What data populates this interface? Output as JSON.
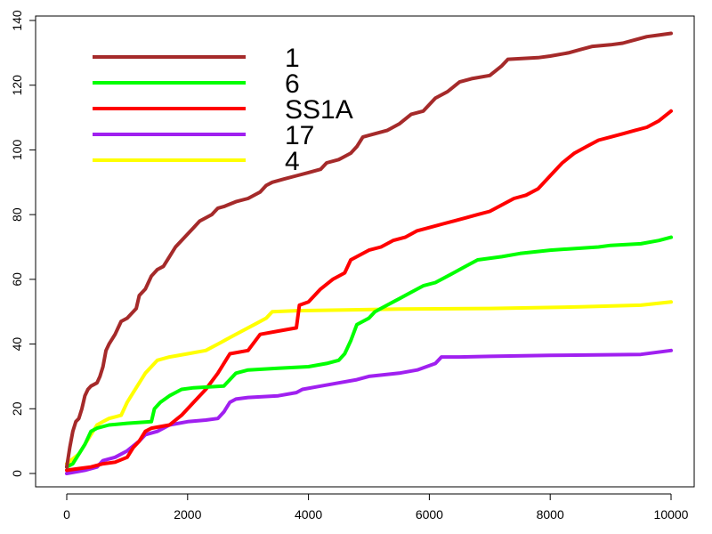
{
  "chart_data": {
    "type": "line",
    "title": "",
    "xlabel": "",
    "ylabel": "",
    "xlim": [
      0,
      10000
    ],
    "ylim": [
      0,
      140
    ],
    "x_ticks": [
      0,
      2000,
      4000,
      6000,
      8000,
      10000
    ],
    "y_ticks": [
      0,
      20,
      40,
      60,
      80,
      100,
      120,
      140
    ],
    "x_tick_labels": [
      "0",
      "2000",
      "4000",
      "6000",
      "8000",
      "10000"
    ],
    "y_tick_labels": [
      "0",
      "20",
      "40",
      "60",
      "80",
      "100",
      "120",
      "140"
    ],
    "grid": false,
    "legend_position": "top-left",
    "series": [
      {
        "name": "1",
        "color": "#a52a2a",
        "points": [
          [
            0,
            2
          ],
          [
            50,
            8
          ],
          [
            100,
            13
          ],
          [
            150,
            16
          ],
          [
            200,
            17
          ],
          [
            250,
            20
          ],
          [
            300,
            24
          ],
          [
            350,
            26
          ],
          [
            400,
            27
          ],
          [
            500,
            28
          ],
          [
            550,
            30
          ],
          [
            600,
            33
          ],
          [
            650,
            38
          ],
          [
            700,
            40
          ],
          [
            800,
            43
          ],
          [
            850,
            45
          ],
          [
            900,
            47
          ],
          [
            1000,
            48
          ],
          [
            1100,
            50
          ],
          [
            1150,
            51
          ],
          [
            1200,
            55
          ],
          [
            1300,
            57
          ],
          [
            1350,
            59
          ],
          [
            1400,
            61
          ],
          [
            1500,
            63
          ],
          [
            1600,
            64
          ],
          [
            1700,
            67
          ],
          [
            1800,
            70
          ],
          [
            1900,
            72
          ],
          [
            2000,
            74
          ],
          [
            2100,
            76
          ],
          [
            2200,
            78
          ],
          [
            2400,
            80
          ],
          [
            2500,
            82
          ],
          [
            2600,
            82.5
          ],
          [
            2800,
            84
          ],
          [
            3000,
            85
          ],
          [
            3200,
            87
          ],
          [
            3300,
            89
          ],
          [
            3400,
            90
          ],
          [
            3600,
            91
          ],
          [
            3800,
            92
          ],
          [
            4000,
            93
          ],
          [
            4200,
            94
          ],
          [
            4300,
            96
          ],
          [
            4500,
            97
          ],
          [
            4700,
            99
          ],
          [
            4800,
            101
          ],
          [
            4900,
            104
          ],
          [
            5000,
            104.5
          ],
          [
            5300,
            106
          ],
          [
            5500,
            108
          ],
          [
            5700,
            111
          ],
          [
            5900,
            112
          ],
          [
            6100,
            116
          ],
          [
            6300,
            118
          ],
          [
            6500,
            121
          ],
          [
            6700,
            122
          ],
          [
            7000,
            123
          ],
          [
            7200,
            126
          ],
          [
            7300,
            128
          ],
          [
            7800,
            128.5
          ],
          [
            8000,
            129
          ],
          [
            8300,
            130
          ],
          [
            8500,
            131
          ],
          [
            8700,
            132
          ],
          [
            9000,
            132.5
          ],
          [
            9200,
            133
          ],
          [
            9400,
            134
          ],
          [
            9600,
            135
          ],
          [
            9800,
            135.5
          ],
          [
            10000,
            136
          ]
        ]
      },
      {
        "name": "6",
        "color": "#00ff00",
        "points": [
          [
            0,
            2
          ],
          [
            100,
            3
          ],
          [
            200,
            6
          ],
          [
            300,
            9
          ],
          [
            400,
            13
          ],
          [
            500,
            14
          ],
          [
            700,
            15
          ],
          [
            1000,
            15.5
          ],
          [
            1400,
            16
          ],
          [
            1450,
            20
          ],
          [
            1550,
            22
          ],
          [
            1700,
            24
          ],
          [
            1800,
            25
          ],
          [
            1900,
            26
          ],
          [
            2100,
            26.5
          ],
          [
            2600,
            27
          ],
          [
            2800,
            31
          ],
          [
            3000,
            32
          ],
          [
            3500,
            32.5
          ],
          [
            4000,
            33
          ],
          [
            4300,
            34
          ],
          [
            4500,
            35
          ],
          [
            4600,
            37
          ],
          [
            4700,
            41
          ],
          [
            4800,
            46
          ],
          [
            5000,
            48
          ],
          [
            5100,
            50
          ],
          [
            5300,
            52
          ],
          [
            5500,
            54
          ],
          [
            5700,
            56
          ],
          [
            5900,
            58
          ],
          [
            6100,
            59
          ],
          [
            6400,
            62
          ],
          [
            6600,
            64
          ],
          [
            6800,
            66
          ],
          [
            7200,
            67
          ],
          [
            7500,
            68
          ],
          [
            8000,
            69
          ],
          [
            8800,
            70
          ],
          [
            9000,
            70.5
          ],
          [
            9500,
            71
          ],
          [
            9800,
            72
          ],
          [
            10000,
            73
          ]
        ]
      },
      {
        "name": "SS1A",
        "color": "#ff0000",
        "points": [
          [
            0,
            1
          ],
          [
            200,
            1.5
          ],
          [
            400,
            2
          ],
          [
            600,
            3
          ],
          [
            800,
            3.5
          ],
          [
            1000,
            5
          ],
          [
            1100,
            8
          ],
          [
            1200,
            10
          ],
          [
            1300,
            13
          ],
          [
            1400,
            14
          ],
          [
            1700,
            15
          ],
          [
            1900,
            18
          ],
          [
            2100,
            22
          ],
          [
            2300,
            26
          ],
          [
            2500,
            31
          ],
          [
            2700,
            37
          ],
          [
            3000,
            38
          ],
          [
            3200,
            43
          ],
          [
            3500,
            44
          ],
          [
            3800,
            45
          ],
          [
            3850,
            52
          ],
          [
            4000,
            53
          ],
          [
            4200,
            57
          ],
          [
            4400,
            60
          ],
          [
            4600,
            62
          ],
          [
            4700,
            66
          ],
          [
            4800,
            67
          ],
          [
            5000,
            69
          ],
          [
            5200,
            70
          ],
          [
            5400,
            72
          ],
          [
            5600,
            73
          ],
          [
            5800,
            75
          ],
          [
            6000,
            76
          ],
          [
            6200,
            77
          ],
          [
            6400,
            78
          ],
          [
            6600,
            79
          ],
          [
            6800,
            80
          ],
          [
            7000,
            81
          ],
          [
            7200,
            83
          ],
          [
            7400,
            85
          ],
          [
            7600,
            86
          ],
          [
            7800,
            88
          ],
          [
            8000,
            92
          ],
          [
            8200,
            96
          ],
          [
            8400,
            99
          ],
          [
            8600,
            101
          ],
          [
            8800,
            103
          ],
          [
            9000,
            104
          ],
          [
            9200,
            105
          ],
          [
            9400,
            106
          ],
          [
            9600,
            107
          ],
          [
            9800,
            109
          ],
          [
            10000,
            112
          ]
        ]
      },
      {
        "name": "17",
        "color": "#a020f0",
        "points": [
          [
            0,
            0
          ],
          [
            300,
            1
          ],
          [
            500,
            2
          ],
          [
            600,
            4
          ],
          [
            800,
            5
          ],
          [
            1000,
            7
          ],
          [
            1200,
            10
          ],
          [
            1300,
            12
          ],
          [
            1500,
            13
          ],
          [
            1700,
            15
          ],
          [
            2000,
            16
          ],
          [
            2300,
            16.5
          ],
          [
            2500,
            17
          ],
          [
            2600,
            19
          ],
          [
            2700,
            22
          ],
          [
            2800,
            23
          ],
          [
            3000,
            23.5
          ],
          [
            3500,
            24
          ],
          [
            3800,
            25
          ],
          [
            3900,
            26
          ],
          [
            4200,
            27
          ],
          [
            4500,
            28
          ],
          [
            4800,
            29
          ],
          [
            5000,
            30
          ],
          [
            5500,
            31
          ],
          [
            5800,
            32
          ],
          [
            6100,
            34
          ],
          [
            6200,
            36
          ],
          [
            6500,
            36
          ],
          [
            7000,
            36.2
          ],
          [
            8000,
            36.5
          ],
          [
            9500,
            36.8
          ],
          [
            10000,
            38
          ]
        ]
      },
      {
        "name": "4",
        "color": "#ffff00",
        "points": [
          [
            0,
            3
          ],
          [
            200,
            6
          ],
          [
            300,
            9
          ],
          [
            400,
            12
          ],
          [
            500,
            15
          ],
          [
            600,
            16
          ],
          [
            700,
            17
          ],
          [
            900,
            18
          ],
          [
            1000,
            22
          ],
          [
            1100,
            25
          ],
          [
            1200,
            28
          ],
          [
            1300,
            31
          ],
          [
            1400,
            33
          ],
          [
            1500,
            35
          ],
          [
            1700,
            36
          ],
          [
            2000,
            37
          ],
          [
            2300,
            38
          ],
          [
            2500,
            40
          ],
          [
            2700,
            42
          ],
          [
            2900,
            44
          ],
          [
            3100,
            46
          ],
          [
            3300,
            48
          ],
          [
            3400,
            50
          ],
          [
            3800,
            50.3
          ],
          [
            4500,
            50.5
          ],
          [
            5500,
            50.8
          ],
          [
            7000,
            51
          ],
          [
            8500,
            51.5
          ],
          [
            9500,
            52
          ],
          [
            10000,
            53
          ]
        ]
      }
    ]
  }
}
